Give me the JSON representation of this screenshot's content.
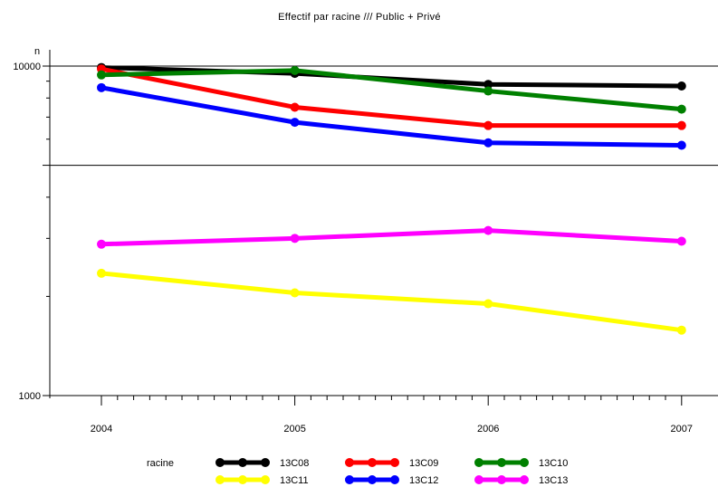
{
  "chart_data": {
    "type": "line",
    "title": "Effectif  par racine /// Public + Privé",
    "ylabel": "n",
    "xlabel": "",
    "x": [
      2004,
      2005,
      2006,
      2007
    ],
    "x_tick_labels": [
      "2004",
      "2005",
      "2006",
      "2007"
    ],
    "yscale": "log",
    "ylim": [
      1000,
      10000
    ],
    "y_tick_labels": [
      "10000",
      "1000"
    ],
    "grid": false,
    "legend_title": "racine",
    "legend_position": "bottom",
    "series": [
      {
        "name": "13C08",
        "color": "#000000",
        "values": [
          9900,
          9500,
          8800,
          8700
        ]
      },
      {
        "name": "13C09",
        "color": "#ff0000",
        "values": [
          9800,
          7500,
          6600,
          6600
        ]
      },
      {
        "name": "13C10",
        "color": "#008000",
        "values": [
          9400,
          9700,
          8400,
          7400
        ]
      },
      {
        "name": "13C11",
        "color": "#ffff00",
        "values": [
          2350,
          2050,
          1900,
          1580
        ]
      },
      {
        "name": "13C12",
        "color": "#0000ff",
        "values": [
          8600,
          6750,
          5850,
          5750
        ]
      },
      {
        "name": "13C13",
        "color": "#ff00ff",
        "values": [
          2880,
          3000,
          3170,
          2940
        ]
      }
    ]
  }
}
